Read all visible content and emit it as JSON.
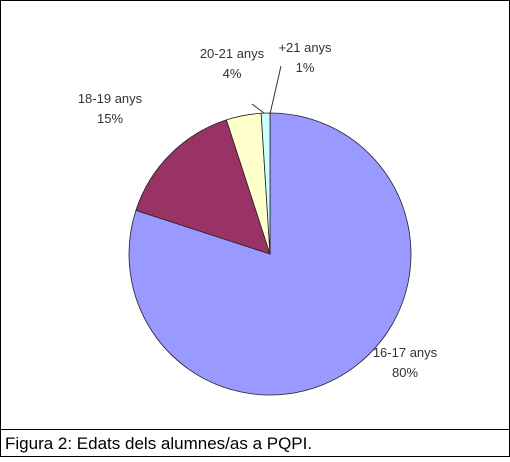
{
  "chart_data": {
    "type": "pie",
    "categories": [
      "16-17 anys",
      "18-19 anys",
      "20-21 anys",
      "+21 anys"
    ],
    "values": [
      80,
      15,
      4,
      1
    ],
    "value_labels": [
      "80%",
      "15%",
      "4%",
      "1%"
    ],
    "colors": [
      "#9999ff",
      "#993366",
      "#ffffcc",
      "#ccffff"
    ]
  },
  "caption": "Figura 2: Edats dels alumnes/as a PQPI."
}
